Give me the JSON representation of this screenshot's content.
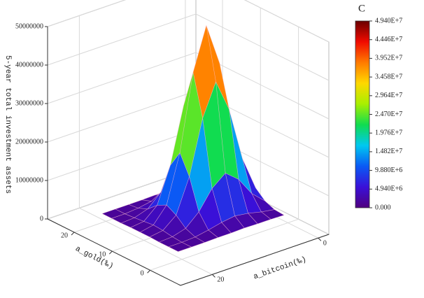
{
  "chart_data": {
    "type": "surface3d",
    "x_label": "a_gold(‰)",
    "y_label": "a_bitcoin(‰)",
    "z_label": "5-year total investment assets",
    "x": [
      1,
      3.5,
      6,
      8.5,
      11,
      13.5,
      16,
      18.5,
      21
    ],
    "y": [
      0,
      2.5,
      5,
      7.5,
      10,
      12.5,
      15,
      17.5,
      20
    ],
    "z": [
      [
        1500000,
        1600000,
        1600000,
        1700000,
        1600000,
        1600000,
        1500000,
        1500000,
        1500000
      ],
      [
        1700000,
        2300000,
        3100000,
        3600000,
        3100000,
        2300000,
        1700000,
        1500000,
        1500000
      ],
      [
        2700000,
        5800000,
        10700000,
        13500000,
        10700000,
        5800000,
        2700000,
        1700000,
        1500000
      ],
      [
        4900000,
        13700000,
        27700000,
        36000000,
        27700000,
        13700000,
        4900000,
        2100000,
        1600000
      ],
      [
        6300000,
        18700000,
        38400000,
        49400000,
        38400000,
        18700000,
        6300000,
        2300000,
        1600000
      ],
      [
        4800000,
        13500000,
        27000000,
        34000000,
        28500000,
        14200000,
        5000000,
        2000000,
        1600000
      ],
      [
        2600000,
        5600000,
        10200000,
        13000000,
        11000000,
        6000000,
        2800000,
        1700000,
        1500000
      ],
      [
        1700000,
        2200000,
        3000000,
        3500000,
        3200000,
        2400000,
        1800000,
        1500000,
        1500000
      ],
      [
        1500000,
        1500000,
        1600000,
        1600000,
        1600000,
        1500000,
        1500000,
        1500000,
        1500000
      ]
    ],
    "xlim": [
      -8,
      27
    ],
    "xticks": [
      0,
      10,
      20
    ],
    "ylim": [
      -2,
      26
    ],
    "yticks": [
      0,
      20
    ],
    "zlim": [
      0,
      50000000
    ],
    "zticks": [
      0,
      10000000,
      20000000,
      30000000,
      40000000,
      50000000
    ],
    "grid": true,
    "colorbar": {
      "title": "C",
      "lim": [
        0,
        49400000
      ],
      "ticks": [
        {
          "value": 0,
          "label": "0.000"
        },
        {
          "value": 4940000,
          "label": "4.940E+6"
        },
        {
          "value": 9880000,
          "label": "9.880E+6"
        },
        {
          "value": 14820000,
          "label": "1.482E+7"
        },
        {
          "value": 19760000,
          "label": "1.976E+7"
        },
        {
          "value": 24700000,
          "label": "2.470E+7"
        },
        {
          "value": 29640000,
          "label": "2.964E+7"
        },
        {
          "value": 34580000,
          "label": "3.458E+7"
        },
        {
          "value": 39520000,
          "label": "3.952E+7"
        },
        {
          "value": 44460000,
          "label": "4.446E+7"
        },
        {
          "value": 49400000,
          "label": "4.940E+7"
        }
      ],
      "colors": [
        "#50007f",
        "#3a10d8",
        "#0a5af5",
        "#00c8f0",
        "#10dc50",
        "#a8ef00",
        "#ffd800",
        "#ff7a00",
        "#f00a00",
        "#6a0000"
      ]
    }
  }
}
